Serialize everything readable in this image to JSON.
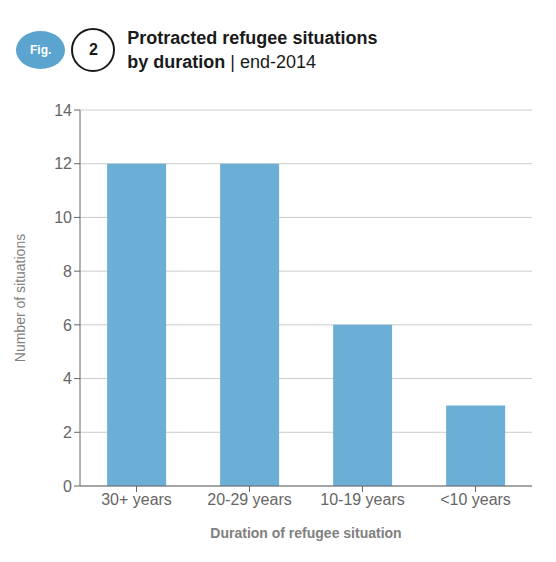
{
  "chart_data": {
    "type": "bar",
    "title": "Protracted refugee situations\nby duration",
    "subtitle": "| end-2014",
    "annotations": [
      "Fig.",
      "2"
    ],
    "categories": [
      "30+ years",
      "20-29 years",
      "10-19 years",
      "<10 years"
    ],
    "values": [
      12,
      12,
      6,
      3
    ],
    "color": "#6BAED6",
    "xlabel": "Duration of refugee situation",
    "ylabel": "Number of situations",
    "ylim": [
      0,
      14
    ],
    "yticks": [
      0,
      2,
      4,
      6,
      8,
      10,
      12,
      14
    ],
    "grid": true
  }
}
